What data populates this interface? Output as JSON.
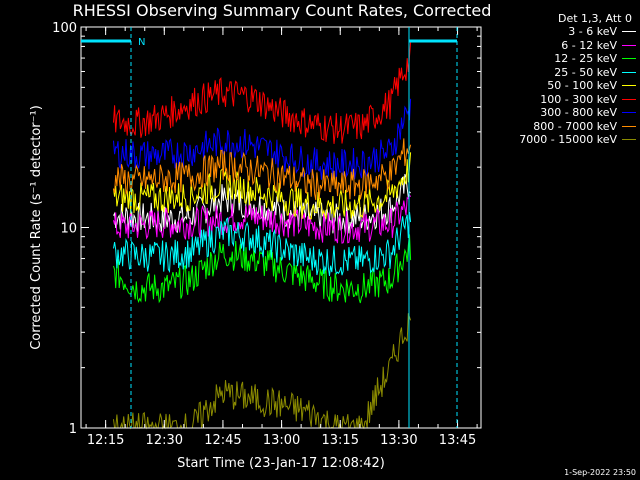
{
  "chart_data": {
    "type": "line",
    "title": "RHESSI Observing Summary Count Rates, Corrected",
    "xlabel": "Start Time (23-Jan-17 12:08:42)",
    "ylabel": "Corrected Count Rate (s⁻¹ detector⁻¹)",
    "y_scale": "log",
    "ylim": [
      1,
      100
    ],
    "y_ticks": [
      "1",
      "10",
      "100"
    ],
    "x_range": [
      "12:08:42",
      "13:51:00"
    ],
    "x_ticks": [
      "12:15",
      "12:30",
      "12:45",
      "13:00",
      "13:15",
      "13:30",
      "13:45"
    ],
    "legend_title": "Det 1,3, Att 0",
    "legend_placement": "right",
    "flag_label": "N",
    "flag_color": "#00e5ff",
    "series": [
      {
        "name": "3 - 6 keV",
        "color": "#ffffff",
        "x": [
          "12:17",
          "12:23",
          "12:30",
          "12:37",
          "12:45",
          "12:52",
          "13:00",
          "13:07",
          "13:14",
          "13:21",
          "13:28",
          "13:33"
        ],
        "y": [
          11.5,
          11.2,
          11.0,
          11.4,
          13.8,
          13.2,
          12.0,
          11.3,
          11.0,
          11.2,
          12.5,
          17.0
        ]
      },
      {
        "name": "6 - 12 keV",
        "color": "#ff00ff",
        "x": [
          "12:17",
          "12:23",
          "12:30",
          "12:37",
          "12:45",
          "12:52",
          "13:00",
          "13:07",
          "13:14",
          "13:21",
          "13:28",
          "13:33"
        ],
        "y": [
          10.0,
          10.2,
          10.5,
          10.5,
          11.0,
          11.5,
          10.8,
          10.2,
          10.0,
          10.1,
          10.5,
          13.0
        ]
      },
      {
        "name": "12 - 25 keV",
        "color": "#00ff00",
        "x": [
          "12:17",
          "12:23",
          "12:30",
          "12:37",
          "12:45",
          "12:52",
          "13:00",
          "13:07",
          "13:14",
          "13:21",
          "13:28",
          "13:33"
        ],
        "y": [
          6.0,
          5.0,
          5.0,
          5.5,
          7.5,
          7.0,
          6.2,
          5.5,
          5.0,
          5.0,
          5.5,
          8.0
        ]
      },
      {
        "name": "25 - 50 keV",
        "color": "#00ffff",
        "x": [
          "12:17",
          "12:23",
          "12:30",
          "12:37",
          "12:45",
          "12:52",
          "13:00",
          "13:07",
          "13:14",
          "13:21",
          "13:28",
          "13:33"
        ],
        "y": [
          7.5,
          7.2,
          7.2,
          7.5,
          9.5,
          9.0,
          7.8,
          7.0,
          6.8,
          6.8,
          7.5,
          11.0
        ]
      },
      {
        "name": "50 - 100 keV",
        "color": "#ffff00",
        "x": [
          "12:17",
          "12:23",
          "12:30",
          "12:37",
          "12:45",
          "12:52",
          "13:00",
          "13:07",
          "13:14",
          "13:21",
          "13:28",
          "13:33"
        ],
        "y": [
          14.0,
          14.0,
          14.0,
          14.5,
          16.5,
          15.5,
          14.0,
          13.0,
          12.8,
          13.0,
          14.5,
          20.0
        ]
      },
      {
        "name": "100 - 300 keV",
        "color": "#ff0000",
        "x": [
          "12:17",
          "12:23",
          "12:30",
          "12:37",
          "12:45",
          "12:52",
          "13:00",
          "13:07",
          "13:14",
          "13:21",
          "13:28",
          "13:33"
        ],
        "y": [
          34,
          33,
          36,
          42,
          47,
          45,
          37,
          33,
          31,
          32,
          42,
          70
        ]
      },
      {
        "name": "300 - 800 keV",
        "color": "#0000ff",
        "x": [
          "12:17",
          "12:23",
          "12:30",
          "12:37",
          "12:45",
          "12:52",
          "13:00",
          "13:07",
          "13:14",
          "13:21",
          "13:28",
          "13:33"
        ],
        "y": [
          24,
          23,
          23,
          24,
          27,
          26,
          23,
          21,
          20.5,
          21,
          24,
          40
        ]
      },
      {
        "name": "800 - 7000 keV",
        "color": "#ff8c00",
        "x": [
          "12:17",
          "12:23",
          "12:30",
          "12:37",
          "12:45",
          "12:52",
          "13:00",
          "13:07",
          "13:14",
          "13:21",
          "13:28",
          "13:33"
        ],
        "y": [
          17.5,
          17.0,
          17.5,
          18.0,
          20.5,
          19.5,
          18.0,
          16.5,
          16.0,
          16.5,
          18.5,
          26.0
        ]
      },
      {
        "name": "7000 - 15000 keV",
        "color": "#8b8b00",
        "x": [
          "12:17",
          "12:23",
          "12:30",
          "12:37",
          "12:45",
          "12:52",
          "13:00",
          "13:07",
          "13:14",
          "13:21",
          "13:28",
          "13:33"
        ],
        "y": [
          1.0,
          1.0,
          1.0,
          1.0,
          1.5,
          1.4,
          1.3,
          1.2,
          1.0,
          1.0,
          2.0,
          3.5
        ]
      }
    ]
  },
  "footer": "1-Sep-2022 23:50"
}
